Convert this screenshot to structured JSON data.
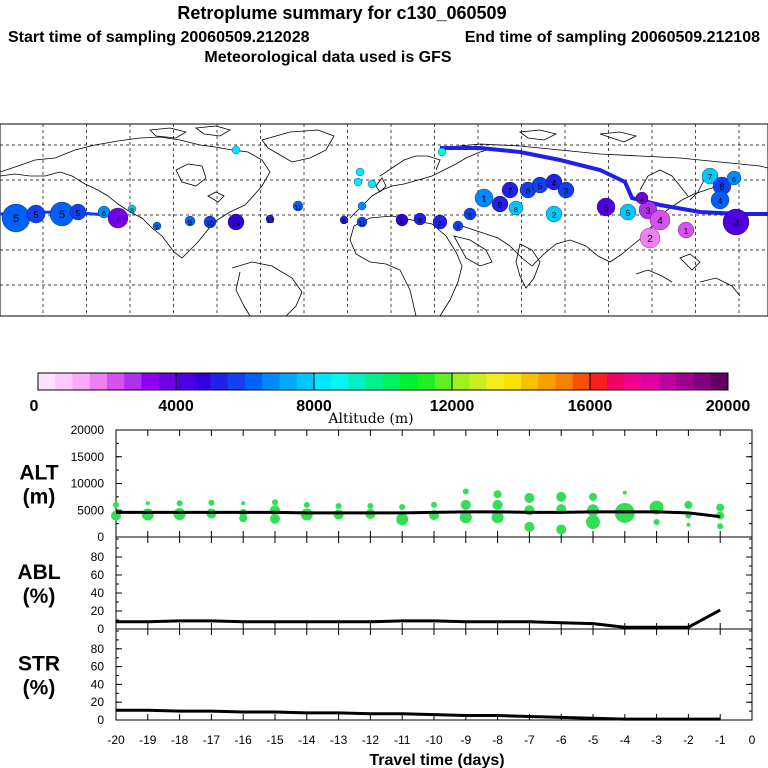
{
  "header": {
    "title": "Retroplume summary for c130_060509",
    "start_label": "Start time of sampling 20060509.212028",
    "end_label": "End time of sampling 20060509.212108",
    "met_label": "Meteorological data used is GFS"
  },
  "map_labels": [
    "5",
    "5",
    "5",
    "5",
    "6",
    "7",
    "8",
    "7",
    "9",
    "10",
    "14",
    "13",
    "11",
    "9",
    "11",
    "8",
    "9",
    "6",
    "7",
    "5",
    "1",
    "9",
    "8",
    "7",
    "6",
    "5",
    "4",
    "3",
    "2",
    "6",
    "5",
    "3",
    "4",
    "2",
    "1",
    "7",
    "8",
    "6",
    "4",
    "3",
    "4"
  ],
  "colorbar": {
    "colors": [
      "#ffe0ff",
      "#ffc8ff",
      "#ffa8ff",
      "#f080f0",
      "#d850f0",
      "#b030f0",
      "#9000f0",
      "#7000e8",
      "#5000e0",
      "#3000e0",
      "#2020e8",
      "#1040f0",
      "#0060f8",
      "#0088ff",
      "#00a8ff",
      "#00c8ff",
      "#00e8ff",
      "#00f8f0",
      "#00f0c0",
      "#00f090",
      "#00f060",
      "#00f030",
      "#20f020",
      "#60f020",
      "#a0f020",
      "#c8f020",
      "#f0f020",
      "#f8e000",
      "#f8c000",
      "#f8a000",
      "#f88000",
      "#f85000",
      "#f82020",
      "#f00060",
      "#f00090",
      "#e000a0",
      "#c000a0",
      "#a00090",
      "#800080",
      "#600060"
    ],
    "tick_labels": [
      "0",
      "4000",
      "8000",
      "12000",
      "16000",
      "20000"
    ],
    "title": "Altitude (m)"
  },
  "chart_data": {
    "type": "line",
    "xlabel": "Travel time (days)",
    "x_ticks": [
      "-20",
      "-19",
      "-18",
      "-17",
      "-16",
      "-15",
      "-14",
      "-13",
      "-12",
      "-11",
      "-10",
      "-9",
      "-8",
      "-7",
      "-6",
      "-5",
      "-4",
      "-3",
      "-2",
      "-1",
      "0"
    ],
    "xlim": [
      -20,
      0
    ],
    "panels": [
      {
        "label_line1": "ALT",
        "label_line2": "(m)",
        "ylim": [
          0,
          20000
        ],
        "y_ticks": [
          "0",
          "5000",
          "10000",
          "15000",
          "20000"
        ],
        "x": [
          -20,
          -19,
          -18,
          -17,
          -16,
          -15,
          -14,
          -13,
          -12,
          -11,
          -10,
          -9,
          -8,
          -7,
          -6,
          -5,
          -4,
          -3,
          -2,
          -1
        ],
        "y": [
          4600,
          4600,
          4600,
          4600,
          4600,
          4600,
          4500,
          4500,
          4500,
          4500,
          4600,
          4700,
          4700,
          4600,
          4600,
          4700,
          4700,
          4700,
          4500,
          3800
        ],
        "scatter": [
          {
            "x": -20,
            "y": 6000,
            "r": 3
          },
          {
            "x": -20,
            "y": 4000,
            "r": 5
          },
          {
            "x": -19,
            "y": 6300,
            "r": 2
          },
          {
            "x": -19,
            "y": 4200,
            "r": 6
          },
          {
            "x": -18,
            "y": 6300,
            "r": 3
          },
          {
            "x": -18,
            "y": 4300,
            "r": 6
          },
          {
            "x": -17,
            "y": 6400,
            "r": 3
          },
          {
            "x": -17,
            "y": 4400,
            "r": 5
          },
          {
            "x": -16,
            "y": 6300,
            "r": 2
          },
          {
            "x": -16,
            "y": 4500,
            "r": 4
          },
          {
            "x": -16,
            "y": 3500,
            "r": 4
          },
          {
            "x": -15,
            "y": 6500,
            "r": 3
          },
          {
            "x": -15,
            "y": 5000,
            "r": 5
          },
          {
            "x": -15,
            "y": 3400,
            "r": 5
          },
          {
            "x": -14,
            "y": 6000,
            "r": 3
          },
          {
            "x": -14,
            "y": 4200,
            "r": 6
          },
          {
            "x": -13,
            "y": 5800,
            "r": 3
          },
          {
            "x": -13,
            "y": 4200,
            "r": 5
          },
          {
            "x": -12,
            "y": 5800,
            "r": 3
          },
          {
            "x": -12,
            "y": 4300,
            "r": 5
          },
          {
            "x": -11,
            "y": 5600,
            "r": 3
          },
          {
            "x": -11,
            "y": 3300,
            "r": 6
          },
          {
            "x": -10,
            "y": 6000,
            "r": 3
          },
          {
            "x": -10,
            "y": 4100,
            "r": 5
          },
          {
            "x": -9,
            "y": 8500,
            "r": 3
          },
          {
            "x": -9,
            "y": 6000,
            "r": 5
          },
          {
            "x": -9,
            "y": 3700,
            "r": 6
          },
          {
            "x": -8,
            "y": 8000,
            "r": 4
          },
          {
            "x": -8,
            "y": 6000,
            "r": 5
          },
          {
            "x": -8,
            "y": 3700,
            "r": 6
          },
          {
            "x": -7,
            "y": 7300,
            "r": 5
          },
          {
            "x": -7,
            "y": 5000,
            "r": 5
          },
          {
            "x": -7,
            "y": 1900,
            "r": 5
          },
          {
            "x": -6,
            "y": 7500,
            "r": 5
          },
          {
            "x": -6,
            "y": 5200,
            "r": 5
          },
          {
            "x": -6,
            "y": 1400,
            "r": 5
          },
          {
            "x": -5,
            "y": 7500,
            "r": 4
          },
          {
            "x": -5,
            "y": 5000,
            "r": 6
          },
          {
            "x": -5,
            "y": 2800,
            "r": 7
          },
          {
            "x": -4,
            "y": 8300,
            "r": 2
          },
          {
            "x": -4,
            "y": 4500,
            "r": 10
          },
          {
            "x": -3,
            "y": 5500,
            "r": 7
          },
          {
            "x": -3,
            "y": 2800,
            "r": 3
          },
          {
            "x": -2,
            "y": 6000,
            "r": 4
          },
          {
            "x": -2,
            "y": 4000,
            "r": 3
          },
          {
            "x": -2,
            "y": 2300,
            "r": 2
          },
          {
            "x": -1,
            "y": 5500,
            "r": 4
          },
          {
            "x": -1,
            "y": 4000,
            "r": 4
          },
          {
            "x": -1,
            "y": 2000,
            "r": 3
          }
        ]
      },
      {
        "label_line1": "ABL",
        "label_line2": "(%)",
        "ylim": [
          0,
          100
        ],
        "y_ticks": [
          "0",
          "20",
          "40",
          "60",
          "80"
        ],
        "x": [
          -20,
          -19,
          -18,
          -17,
          -16,
          -15,
          -14,
          -13,
          -12,
          -11,
          -10,
          -9,
          -8,
          -7,
          -6,
          -5,
          -4,
          -3,
          -2,
          -1
        ],
        "y": [
          8,
          8,
          9,
          9,
          8,
          8,
          8,
          8,
          8,
          9,
          9,
          8,
          8,
          8,
          7,
          6,
          2,
          2,
          2,
          21
        ]
      },
      {
        "label_line1": "STR",
        "label_line2": "(%)",
        "ylim": [
          0,
          100
        ],
        "y_ticks": [
          "0",
          "20",
          "40",
          "60",
          "80"
        ],
        "x": [
          -20,
          -19,
          -18,
          -17,
          -16,
          -15,
          -14,
          -13,
          -12,
          -11,
          -10,
          -9,
          -8,
          -7,
          -6,
          -5,
          -4,
          -3,
          -2,
          -1
        ],
        "y": [
          11,
          11,
          10,
          10,
          9,
          9,
          8,
          8,
          7,
          7,
          6,
          5,
          5,
          4,
          3,
          2,
          1,
          1,
          1,
          1
        ]
      }
    ]
  }
}
